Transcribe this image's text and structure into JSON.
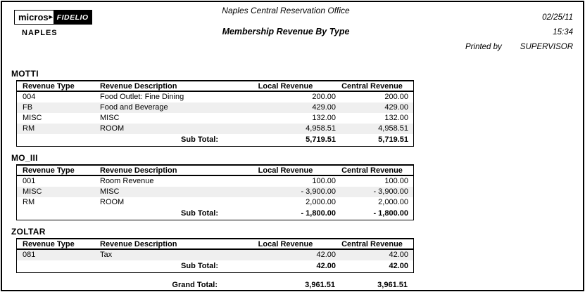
{
  "page": {
    "logo": {
      "micros": "micros",
      "arrow": "▸",
      "fidelio": "FIDELIO"
    },
    "property": "NAPLES",
    "office_name": "Naples Central Reservation Office",
    "report_title": "Membership Revenue By Type",
    "date": "02/25/11",
    "time": "15:34",
    "printed_by_label": "Printed by",
    "printed_by_user": "SUPERVISOR"
  },
  "table_headers": {
    "revenue_type": "Revenue Type",
    "revenue_description": "Revenue Description",
    "local_revenue": "Local Revenue",
    "central_revenue": "Central Revenue"
  },
  "labels": {
    "sub_total": "Sub Total:",
    "grand_total": "Grand Total:"
  },
  "sections": [
    {
      "name": "MOTTI",
      "rows": [
        {
          "type": "004",
          "description": "Food Outlet: Fine Dining",
          "local": "200.00",
          "central": "200.00"
        },
        {
          "type": "FB",
          "description": "Food and Beverage",
          "local": "429.00",
          "central": "429.00"
        },
        {
          "type": "MISC",
          "description": "MISC",
          "local": "132.00",
          "central": "132.00"
        },
        {
          "type": "RM",
          "description": "ROOM",
          "local": "4,958.51",
          "central": "4,958.51"
        }
      ],
      "subtotal": {
        "local": "5,719.51",
        "central": "5,719.51"
      }
    },
    {
      "name": "MO_III",
      "rows": [
        {
          "type": "001",
          "description": "Room Revenue",
          "local": "100.00",
          "central": "100.00"
        },
        {
          "type": "MISC",
          "description": "MISC",
          "local": "- 3,900.00",
          "central": "- 3,900.00"
        },
        {
          "type": "RM",
          "description": "ROOM",
          "local": "2,000.00",
          "central": "2,000.00"
        }
      ],
      "subtotal": {
        "local": "- 1,800.00",
        "central": "- 1,800.00"
      }
    },
    {
      "name": "ZOLTAR",
      "rows": [
        {
          "type": "081",
          "description": "Tax",
          "local": "42.00",
          "central": "42.00"
        }
      ],
      "subtotal": {
        "local": "42.00",
        "central": "42.00"
      }
    }
  ],
  "grand_total": {
    "local": "3,961.51",
    "central": "3,961.51"
  },
  "colors": {
    "border": "#000000",
    "row_shade": "#efefef",
    "logo_bg": "#000000",
    "logo_fg": "#ffffff"
  }
}
